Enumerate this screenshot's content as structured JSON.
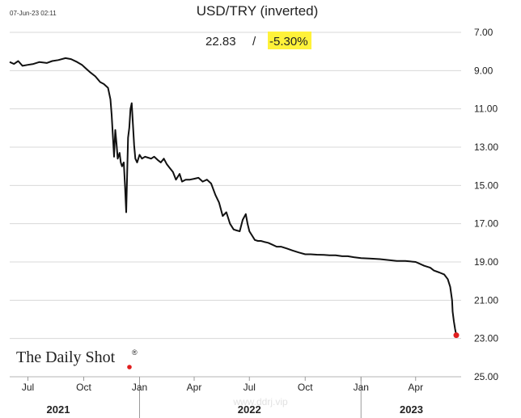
{
  "timestamp": "07-Jun-23 02:11",
  "title": "USD/TRY (inverted)",
  "latest": {
    "value": "22.83",
    "separator": "/",
    "change": "-5.30%",
    "highlight_color": "#fff23a"
  },
  "branding": {
    "name": "The Daily Shot",
    "mark": "®",
    "dot_color": "#e01e1e"
  },
  "watermark": "www.ddrj.vip",
  "chart_data": {
    "type": "line",
    "title": "USD/TRY (inverted)",
    "xlabel": "",
    "ylabel": "",
    "y_inverted": true,
    "ylim": [
      7.0,
      25.0
    ],
    "y_ticks": [
      "7.00",
      "9.00",
      "11.00",
      "13.00",
      "15.00",
      "17.00",
      "19.00",
      "21.00",
      "23.00",
      "25.00"
    ],
    "y_ticks_values": [
      7,
      9,
      11,
      13,
      15,
      17,
      19,
      21,
      23,
      25
    ],
    "xlim": [
      "2021-06-01",
      "2023-06-15"
    ],
    "x_ticks": [
      {
        "label": "Jul",
        "date": "2021-07-01"
      },
      {
        "label": "Oct",
        "date": "2021-10-01"
      },
      {
        "label": "Jan",
        "date": "2022-01-01"
      },
      {
        "label": "Apr",
        "date": "2022-04-01"
      },
      {
        "label": "Jul",
        "date": "2022-07-01"
      },
      {
        "label": "Oct",
        "date": "2022-10-01"
      },
      {
        "label": "Jan",
        "date": "2023-01-01"
      },
      {
        "label": "Apr",
        "date": "2023-04-01"
      }
    ],
    "year_labels": [
      {
        "label": "2021",
        "date": "2021-08-20"
      },
      {
        "label": "2022",
        "date": "2022-07-01"
      },
      {
        "label": "2023",
        "date": "2023-03-25"
      }
    ],
    "year_dividers": [
      "2022-01-01",
      "2023-01-01"
    ],
    "grid": true,
    "line_color": "#111111",
    "end_marker_color": "#e01e1e",
    "series": [
      {
        "x": [
          "2021-06-01",
          "2021-06-08",
          "2021-06-15",
          "2021-06-22",
          "2021-07-01",
          "2021-07-10",
          "2021-07-20",
          "2021-08-01",
          "2021-08-10",
          "2021-08-20",
          "2021-09-01",
          "2021-09-10",
          "2021-09-20",
          "2021-09-28",
          "2021-10-05",
          "2021-10-12",
          "2021-10-20",
          "2021-10-28",
          "2021-11-03",
          "2021-11-10",
          "2021-11-14",
          "2021-11-16",
          "2021-11-18",
          "2021-11-20",
          "2021-11-22",
          "2021-11-24",
          "2021-11-26",
          "2021-11-29",
          "2021-12-01",
          "2021-12-03",
          "2021-12-06",
          "2021-12-08",
          "2021-12-10",
          "2021-12-13",
          "2021-12-15",
          "2021-12-17",
          "2021-12-19",
          "2021-12-21",
          "2021-12-23",
          "2021-12-25",
          "2021-12-28",
          "2022-01-01",
          "2022-01-05",
          "2022-01-10",
          "2022-01-15",
          "2022-01-20",
          "2022-01-25",
          "2022-02-01",
          "2022-02-05",
          "2022-02-10",
          "2022-02-15",
          "2022-02-20",
          "2022-02-25",
          "2022-03-02",
          "2022-03-08",
          "2022-03-12",
          "2022-03-18",
          "2022-03-25",
          "2022-04-01",
          "2022-04-08",
          "2022-04-15",
          "2022-04-22",
          "2022-04-29",
          "2022-05-06",
          "2022-05-12",
          "2022-05-18",
          "2022-05-24",
          "2022-05-30",
          "2022-06-05",
          "2022-06-10",
          "2022-06-15",
          "2022-06-20",
          "2022-06-25",
          "2022-06-28",
          "2022-07-01",
          "2022-07-05",
          "2022-07-10",
          "2022-07-15",
          "2022-07-20",
          "2022-07-25",
          "2022-08-01",
          "2022-08-08",
          "2022-08-15",
          "2022-08-22",
          "2022-09-01",
          "2022-09-10",
          "2022-09-20",
          "2022-10-01",
          "2022-10-10",
          "2022-10-20",
          "2022-11-01",
          "2022-11-10",
          "2022-11-20",
          "2022-12-01",
          "2022-12-10",
          "2022-12-20",
          "2023-01-01",
          "2023-01-15",
          "2023-02-01",
          "2023-02-15",
          "2023-03-01",
          "2023-03-15",
          "2023-04-01",
          "2023-04-15",
          "2023-04-25",
          "2023-05-01",
          "2023-05-10",
          "2023-05-18",
          "2023-05-24",
          "2023-05-28",
          "2023-05-31",
          "2023-06-01",
          "2023-06-03",
          "2023-06-05",
          "2023-06-07"
        ],
        "values": [
          8.55,
          8.65,
          8.5,
          8.75,
          8.7,
          8.65,
          8.55,
          8.6,
          8.5,
          8.45,
          8.35,
          8.4,
          8.55,
          8.7,
          8.9,
          9.1,
          9.3,
          9.6,
          9.7,
          9.9,
          10.5,
          11.3,
          12.4,
          13.5,
          12.1,
          12.8,
          13.6,
          13.3,
          13.8,
          14.0,
          13.8,
          15.0,
          16.4,
          12.5,
          12.0,
          11.0,
          10.7,
          11.8,
          12.9,
          13.6,
          13.8,
          13.4,
          13.6,
          13.5,
          13.55,
          13.6,
          13.5,
          13.7,
          13.8,
          13.6,
          13.9,
          14.1,
          14.3,
          14.7,
          14.4,
          14.8,
          14.7,
          14.7,
          14.65,
          14.6,
          14.8,
          14.7,
          14.9,
          15.5,
          15.9,
          16.6,
          16.4,
          17.0,
          17.3,
          17.35,
          17.4,
          16.8,
          16.5,
          17.0,
          17.4,
          17.6,
          17.85,
          17.9,
          17.9,
          17.95,
          18.0,
          18.1,
          18.2,
          18.2,
          18.3,
          18.4,
          18.5,
          18.6,
          18.6,
          18.62,
          18.63,
          18.65,
          18.65,
          18.7,
          18.7,
          18.75,
          18.8,
          18.82,
          18.85,
          18.9,
          18.95,
          18.95,
          19.0,
          19.2,
          19.3,
          19.45,
          19.55,
          19.65,
          19.9,
          20.3,
          21.0,
          21.6,
          22.1,
          22.5,
          22.83
        ]
      }
    ]
  }
}
